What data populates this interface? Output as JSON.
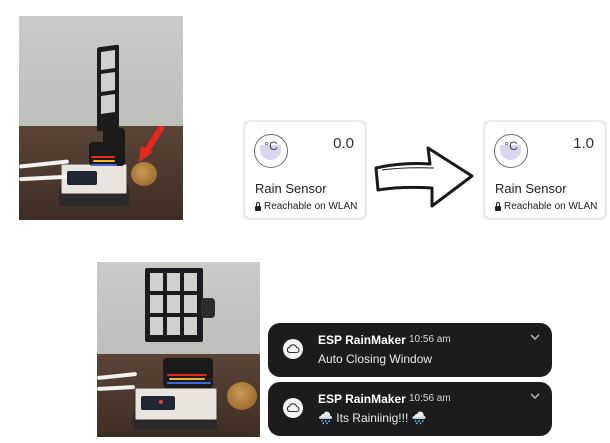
{
  "cards": [
    {
      "device_name": "Rain Sensor",
      "value": "0.0",
      "status": "Reachable on WLAN",
      "icon_symbol": "°C",
      "icon": "thermometer-dial-icon"
    },
    {
      "device_name": "Rain Sensor",
      "value": "1.0",
      "status": "Reachable on WLAN",
      "icon_symbol": "°C",
      "icon": "thermometer-dial-icon"
    }
  ],
  "notifications": [
    {
      "app_name": "ESP RainMaker",
      "time": "10:56 am",
      "message": "Auto Closing Window",
      "icon": "cloud-icon"
    },
    {
      "app_name": "ESP RainMaker",
      "time": "10:56 am",
      "message": "🌧️ Its Rainiinig!!! 🌧️",
      "icon": "cloud-icon"
    }
  ],
  "colors": {
    "notification_bg": "#1c1c1e",
    "card_icon_fill": "#ddd4f1",
    "arrow_stroke": "#1a1a1a",
    "pointer_arrow": "#e8261b"
  }
}
